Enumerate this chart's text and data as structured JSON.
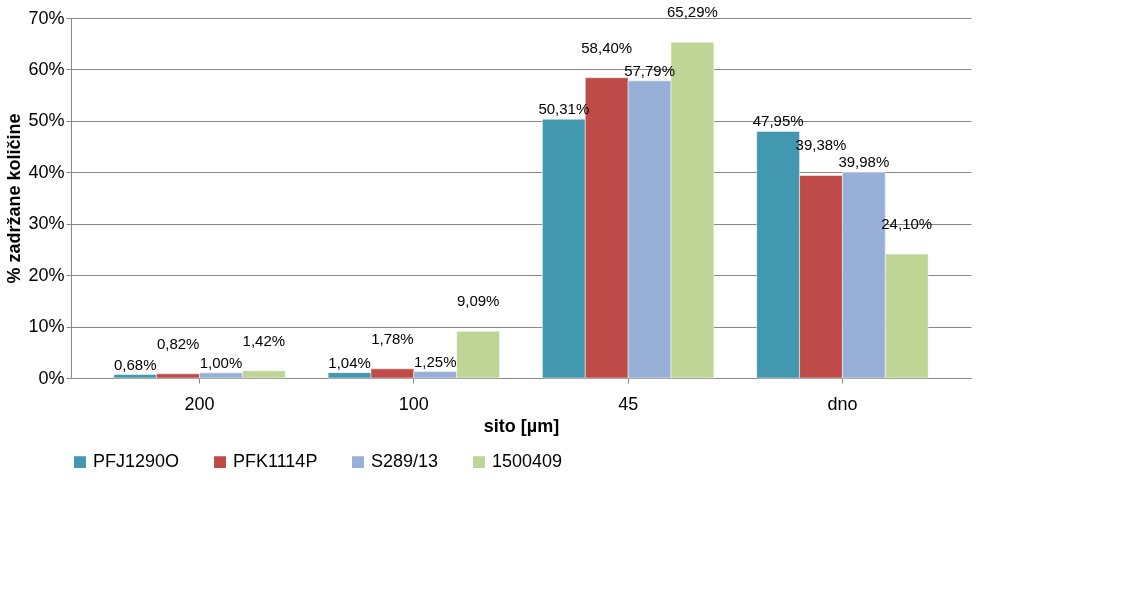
{
  "chart_data": {
    "type": "bar",
    "xlabel": "sito [µm]",
    "ylabel": "% zadržane količine",
    "categories": [
      "200",
      "100",
      "45",
      "dno"
    ],
    "series": [
      {
        "name": "PFJ1290O",
        "color": "#4198af",
        "values": [
          0.68,
          1.04,
          50.31,
          47.95
        ],
        "value_labels": [
          "0,68%",
          "1,04%",
          "50,31%",
          "47,95%"
        ]
      },
      {
        "name": "PFK1114P",
        "color": "#be4b48",
        "values": [
          0.82,
          1.78,
          58.4,
          39.38
        ],
        "value_labels": [
          "0,82%",
          "1,78%",
          "58,40%",
          "39,38%"
        ]
      },
      {
        "name": "S289/13",
        "color": "#98b0d8",
        "values": [
          1.0,
          1.25,
          57.79,
          39.98
        ],
        "value_labels": [
          "1,00%",
          "1,25%",
          "57,79%",
          "39,98%"
        ]
      },
      {
        "name": "1500409",
        "color": "#bed596",
        "values": [
          1.42,
          9.09,
          65.29,
          24.1
        ],
        "value_labels": [
          "1,42%",
          "9,09%",
          "65,29%",
          "24,10%"
        ]
      }
    ],
    "ylim": [
      0,
      70
    ],
    "yticks": [
      {
        "value": 0,
        "label": "0%"
      },
      {
        "value": 10,
        "label": "10%"
      },
      {
        "value": 20,
        "label": "20%"
      },
      {
        "value": 30,
        "label": "30%"
      },
      {
        "value": 40,
        "label": "40%"
      },
      {
        "value": 50,
        "label": "50%"
      },
      {
        "value": 60,
        "label": "60%"
      },
      {
        "value": 70,
        "label": "70%"
      }
    ],
    "grid": "y",
    "legend": "bottom"
  }
}
